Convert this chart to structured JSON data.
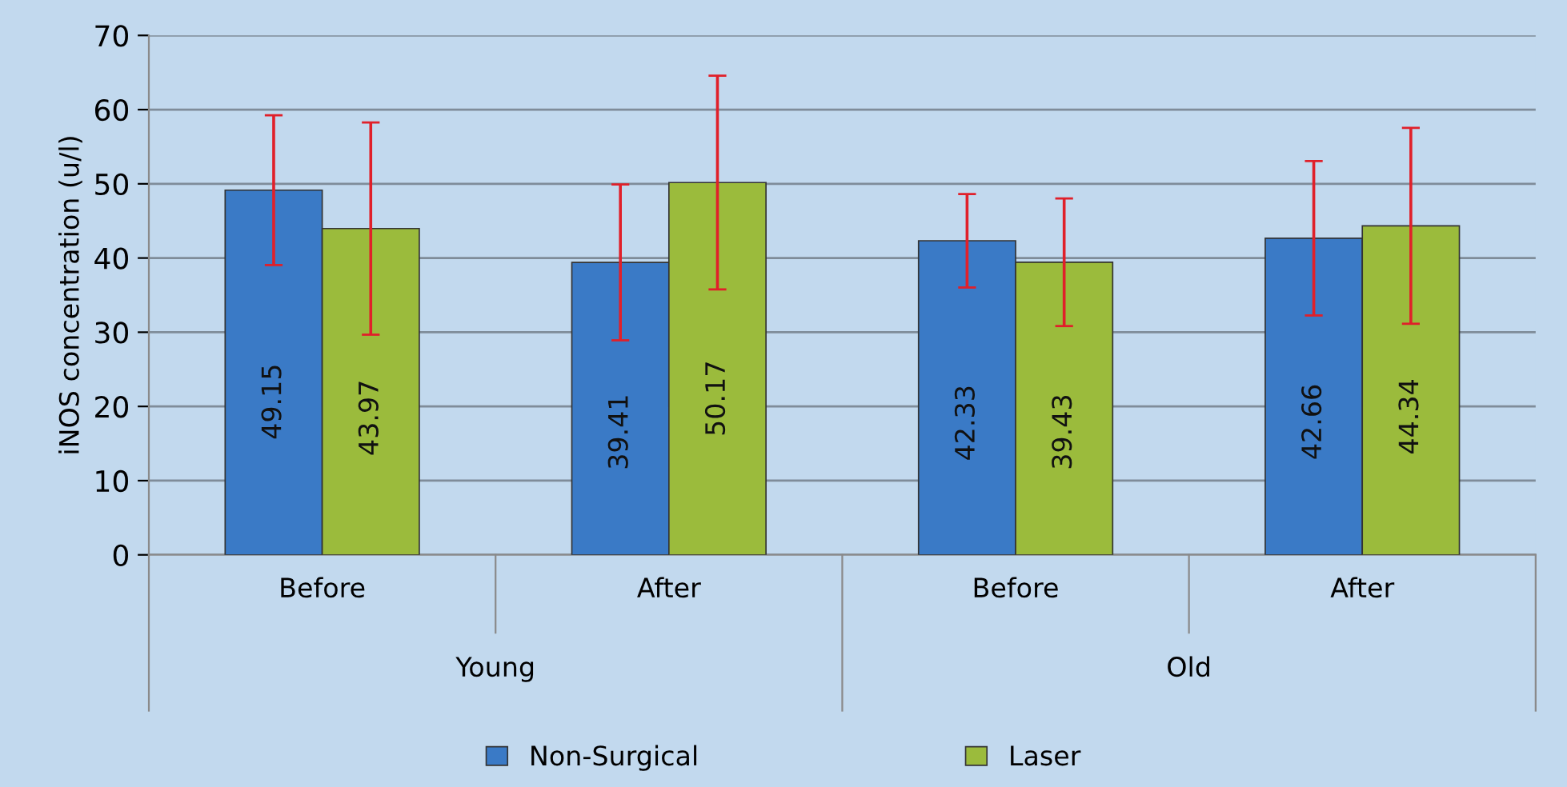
{
  "chart_data": {
    "type": "bar",
    "ylabel": "iNOS concentration (u/l)",
    "categories": [
      "Before",
      "After",
      "Before",
      "After"
    ],
    "series": [
      {
        "name": "Non-Surgical",
        "color": "#3a7ac6",
        "values": [
          49.15,
          39.41,
          42.33,
          42.66
        ],
        "errors": [
          10.1,
          10.5,
          6.3,
          10.4
        ]
      },
      {
        "name": "Laser",
        "color": "#9bbb3c",
        "values": [
          43.97,
          50.17,
          39.43,
          44.34
        ],
        "errors": [
          14.3,
          14.4,
          8.6,
          13.2
        ]
      }
    ],
    "annotations": [
      "Young",
      "Old"
    ],
    "ylim": [
      0,
      70
    ],
    "yticks": [
      0,
      10,
      20,
      30,
      40,
      50,
      60,
      70
    ],
    "grid": "y",
    "legend": "bottom",
    "data_labels": true
  }
}
